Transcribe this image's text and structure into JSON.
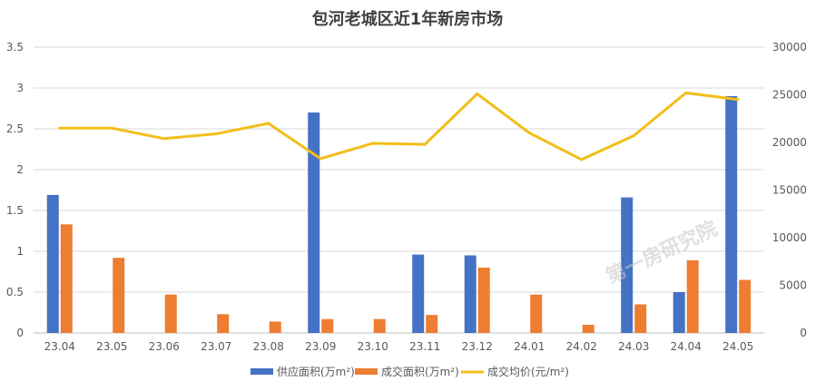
{
  "chart_data": {
    "type": "bar",
    "title": "包河老城区近1年新房市场",
    "categories": [
      "23.04",
      "23.05",
      "23.06",
      "23.07",
      "23.08",
      "23.09",
      "23.10",
      "23.11",
      "23.12",
      "24.01",
      "24.02",
      "24.03",
      "24.04",
      "24.05"
    ],
    "series": [
      {
        "name": "供应面积(万m²)",
        "kind": "bar",
        "axis": "left",
        "color": "#4472C4",
        "values": [
          1.69,
          0,
          0,
          0,
          0,
          2.7,
          0,
          0.96,
          0.95,
          0,
          0,
          1.66,
          0.5,
          2.9
        ]
      },
      {
        "name": "成交面积(万m²)",
        "kind": "bar",
        "axis": "left",
        "color": "#ED7D31",
        "values": [
          1.33,
          0.92,
          0.47,
          0.23,
          0.14,
          0.17,
          0.17,
          0.22,
          0.8,
          0.47,
          0.1,
          0.35,
          0.89,
          0.65
        ]
      },
      {
        "name": "成交均价(元/m²)",
        "kind": "line",
        "axis": "right",
        "color": "#F2BE1A",
        "values": [
          21500,
          21500,
          20400,
          20900,
          22000,
          18300,
          19900,
          19800,
          25100,
          21000,
          18200,
          20700,
          25200,
          24500
        ]
      }
    ],
    "y_left": {
      "min": 0,
      "max": 3.5,
      "ticks": [
        "0",
        "0.5",
        "1",
        "1.5",
        "2",
        "2.5",
        "3",
        "3.5"
      ]
    },
    "y_right": {
      "min": 0,
      "max": 30000,
      "ticks": [
        "0",
        "5000",
        "10000",
        "15000",
        "20000",
        "25000",
        "30000"
      ]
    },
    "grid": true,
    "legend_position": "bottom"
  },
  "watermark": "第一房研究院"
}
